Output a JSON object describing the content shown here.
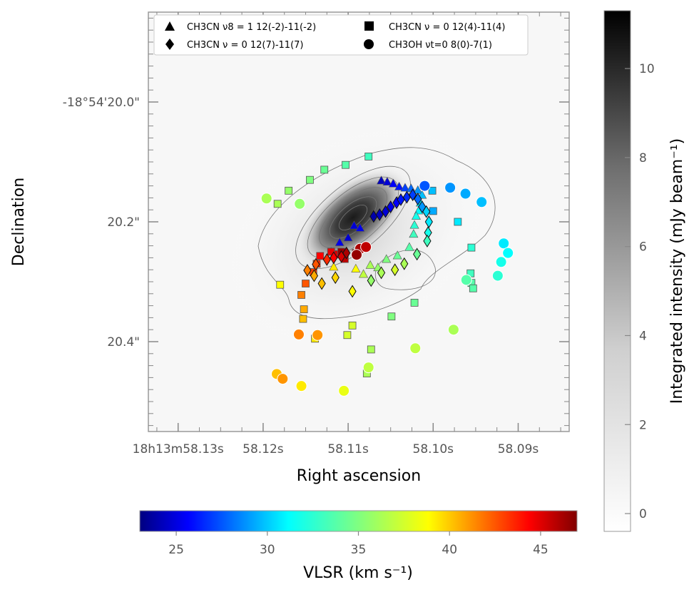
{
  "chart_data": {
    "type": "scatter",
    "subtype": "sky-map with grayscale integrated-intensity image, contours and velocity-coloured markers",
    "xlabel": "Right ascension",
    "ylabel": "Declination",
    "x_ticks": [
      {
        "value": 58.13,
        "label": "18h13m58.13s"
      },
      {
        "value": 58.12,
        "label": "58.12s"
      },
      {
        "value": 58.11,
        "label": "58.11s"
      },
      {
        "value": 58.1,
        "label": "58.10s"
      },
      {
        "value": 58.09,
        "label": "58.09s"
      }
    ],
    "y_ticks": [
      {
        "value": 20.0,
        "label": "-18°54'20.0\""
      },
      {
        "value": 20.2,
        "label": "20.2\""
      },
      {
        "value": 20.4,
        "label": "20.4\""
      }
    ],
    "x_range_sec": [
      58.1335,
      58.084
    ],
    "y_range_arcsec": [
      19.85,
      20.55
    ],
    "image": {
      "peak": {
        "ra": 58.1095,
        "dec": 20.19
      },
      "max_intensity": 11.3
    },
    "contours_note": "thin gray contours of the integrated intensity",
    "colorbar_intensity": {
      "label": "Integrated intensity (mJy beam⁻¹)",
      "ticks": [
        0,
        2,
        4,
        6,
        8,
        10
      ],
      "range": [
        -0.4,
        11.3
      ]
    },
    "colorbar_velocity": {
      "label": "VLSR (km s⁻¹)",
      "ticks": [
        25,
        30,
        35,
        40,
        45
      ],
      "range": [
        23,
        47
      ]
    },
    "legend": [
      {
        "marker": "triangle",
        "label": "CH3CN ν8 = 1 12(-2)-11(-2)"
      },
      {
        "marker": "square",
        "label": "CH3CN ν = 0 12(4)-11(4)"
      },
      {
        "marker": "diamond",
        "label": "CH3CN ν = 0 12(7)-11(7)"
      },
      {
        "marker": "circle",
        "label": "CH3OH νt=0 8(0)-7(1)"
      }
    ],
    "series": [
      {
        "name": "CH3CN v8=1 12(-2)-11(-2)",
        "marker": "triangle",
        "points": [
          {
            "ra": 58.1061,
            "dec": 20.131,
            "v": 24.5
          },
          {
            "ra": 58.1054,
            "dec": 20.133,
            "v": 25.0
          },
          {
            "ra": 58.1047,
            "dec": 20.136,
            "v": 25.8
          },
          {
            "ra": 58.104,
            "dec": 20.141,
            "v": 26.5
          },
          {
            "ra": 58.1033,
            "dec": 20.143,
            "v": 27.5
          },
          {
            "ra": 58.1026,
            "dec": 20.144,
            "v": 28.5
          },
          {
            "ra": 58.1018,
            "dec": 20.147,
            "v": 29.5
          },
          {
            "ra": 58.1013,
            "dec": 20.155,
            "v": 30.5
          },
          {
            "ra": 58.1015,
            "dec": 20.168,
            "v": 31.5
          },
          {
            "ra": 58.1017,
            "dec": 20.181,
            "v": 32.0
          },
          {
            "ra": 58.102,
            "dec": 20.19,
            "v": 32.5
          },
          {
            "ra": 58.1022,
            "dec": 20.205,
            "v": 33.0
          },
          {
            "ra": 58.1023,
            "dec": 20.22,
            "v": 33.5
          },
          {
            "ra": 58.1028,
            "dec": 20.242,
            "v": 34.0
          },
          {
            "ra": 58.1042,
            "dec": 20.256,
            "v": 34.5
          },
          {
            "ra": 58.1055,
            "dec": 20.262,
            "v": 35.0
          },
          {
            "ra": 58.1065,
            "dec": 20.276,
            "v": 35.5
          },
          {
            "ra": 58.1074,
            "dec": 20.272,
            "v": 36.0
          },
          {
            "ra": 58.1082,
            "dec": 20.287,
            "v": 36.5
          },
          {
            "ra": 58.1091,
            "dec": 20.278,
            "v": 38.0
          },
          {
            "ra": 58.1117,
            "dec": 20.275,
            "v": 38.5
          },
          {
            "ra": 58.1093,
            "dec": 20.206,
            "v": 25.0
          },
          {
            "ra": 58.1086,
            "dec": 20.21,
            "v": 25.5
          },
          {
            "ra": 58.11,
            "dec": 20.226,
            "v": 25.0
          },
          {
            "ra": 58.111,
            "dec": 20.234,
            "v": 25.5
          },
          {
            "ra": 58.112,
            "dec": 20.25,
            "v": 45.0
          }
        ]
      },
      {
        "name": "CH3CN v=0 12(4)-11(4)",
        "marker": "square",
        "points": [
          {
            "ra": 58.1076,
            "dec": 20.091,
            "v": 33.5
          },
          {
            "ra": 58.1103,
            "dec": 20.105,
            "v": 34.0
          },
          {
            "ra": 58.1128,
            "dec": 20.113,
            "v": 34.5
          },
          {
            "ra": 58.1145,
            "dec": 20.13,
            "v": 35.0
          },
          {
            "ra": 58.117,
            "dec": 20.148,
            "v": 35.5
          },
          {
            "ra": 58.1183,
            "dec": 20.17,
            "v": 36.0
          },
          {
            "ra": 58.1001,
            "dec": 20.148,
            "v": 30.5
          },
          {
            "ra": 58.1,
            "dec": 20.182,
            "v": 30.0
          },
          {
            "ra": 58.0971,
            "dec": 20.2,
            "v": 31.5
          },
          {
            "ra": 58.0955,
            "dec": 20.243,
            "v": 33.0
          },
          {
            "ra": 58.0956,
            "dec": 20.286,
            "v": 33.5
          },
          {
            "ra": 58.0955,
            "dec": 20.302,
            "v": 34.0
          },
          {
            "ra": 58.0953,
            "dec": 20.311,
            "v": 34.0
          },
          {
            "ra": 58.1022,
            "dec": 20.335,
            "v": 34.5
          },
          {
            "ra": 58.1049,
            "dec": 20.358,
            "v": 35.0
          },
          {
            "ra": 58.1073,
            "dec": 20.413,
            "v": 36.0
          },
          {
            "ra": 58.1078,
            "dec": 20.453,
            "v": 36.0
          },
          {
            "ra": 58.1101,
            "dec": 20.389,
            "v": 37.0
          },
          {
            "ra": 58.1095,
            "dec": 20.373,
            "v": 37.0
          },
          {
            "ra": 58.118,
            "dec": 20.305,
            "v": 38.0
          },
          {
            "ra": 58.1139,
            "dec": 20.395,
            "v": 38.5
          },
          {
            "ra": 58.1153,
            "dec": 20.362,
            "v": 39.5
          },
          {
            "ra": 58.1152,
            "dec": 20.346,
            "v": 40.0
          },
          {
            "ra": 58.1155,
            "dec": 20.322,
            "v": 41.0
          },
          {
            "ra": 58.115,
            "dec": 20.303,
            "v": 42.0
          },
          {
            "ra": 58.1141,
            "dec": 20.284,
            "v": 42.5
          },
          {
            "ra": 58.1137,
            "dec": 20.27,
            "v": 43.0
          },
          {
            "ra": 58.1133,
            "dec": 20.257,
            "v": 44.0
          },
          {
            "ra": 58.112,
            "dec": 20.25,
            "v": 44.5
          },
          {
            "ra": 58.1112,
            "dec": 20.254,
            "v": 45.0
          },
          {
            "ra": 58.1104,
            "dec": 20.262,
            "v": 45.5
          },
          {
            "ra": 58.1091,
            "dec": 20.252,
            "v": 46.0
          },
          {
            "ra": 58.1108,
            "dec": 20.25,
            "v": 46.5
          }
        ]
      },
      {
        "name": "CH3CN v=0 12(7)-11(7)",
        "marker": "diamond",
        "points": [
          {
            "ra": 58.107,
            "dec": 20.191,
            "v": 24.0
          },
          {
            "ra": 58.1063,
            "dec": 20.188,
            "v": 24.5
          },
          {
            "ra": 58.1056,
            "dec": 20.183,
            "v": 25.0
          },
          {
            "ra": 58.105,
            "dec": 20.175,
            "v": 25.5
          },
          {
            "ra": 58.1043,
            "dec": 20.168,
            "v": 26.0
          },
          {
            "ra": 58.1038,
            "dec": 20.163,
            "v": 26.5
          },
          {
            "ra": 58.1031,
            "dec": 20.159,
            "v": 27.0
          },
          {
            "ra": 58.1024,
            "dec": 20.155,
            "v": 27.5
          },
          {
            "ra": 58.1018,
            "dec": 20.162,
            "v": 28.5
          },
          {
            "ra": 58.1013,
            "dec": 20.175,
            "v": 29.5
          },
          {
            "ra": 58.1008,
            "dec": 20.183,
            "v": 31.0
          },
          {
            "ra": 58.1005,
            "dec": 20.2,
            "v": 31.5
          },
          {
            "ra": 58.1006,
            "dec": 20.218,
            "v": 32.5
          },
          {
            "ra": 58.1007,
            "dec": 20.232,
            "v": 33.5
          },
          {
            "ra": 58.1019,
            "dec": 20.254,
            "v": 34.5
          },
          {
            "ra": 58.1034,
            "dec": 20.27,
            "v": 36.0
          },
          {
            "ra": 58.1045,
            "dec": 20.28,
            "v": 37.0
          },
          {
            "ra": 58.1073,
            "dec": 20.298,
            "v": 35.5
          },
          {
            "ra": 58.1061,
            "dec": 20.285,
            "v": 36.0
          },
          {
            "ra": 58.1095,
            "dec": 20.316,
            "v": 38.0
          },
          {
            "ra": 58.1115,
            "dec": 20.293,
            "v": 39.0
          },
          {
            "ra": 58.1131,
            "dec": 20.303,
            "v": 39.5
          },
          {
            "ra": 58.114,
            "dec": 20.29,
            "v": 40.0
          },
          {
            "ra": 58.1148,
            "dec": 20.281,
            "v": 41.0
          },
          {
            "ra": 58.1138,
            "dec": 20.271,
            "v": 42.0
          },
          {
            "ra": 58.1125,
            "dec": 20.263,
            "v": 43.0
          },
          {
            "ra": 58.1117,
            "dec": 20.26,
            "v": 44.0
          },
          {
            "ra": 58.1108,
            "dec": 20.258,
            "v": 45.0
          },
          {
            "ra": 58.1102,
            "dec": 20.252,
            "v": 46.0
          }
        ]
      },
      {
        "name": "CH3OH vt=0 8(0)-7(1)",
        "marker": "circle",
        "points": [
          {
            "ra": 58.101,
            "dec": 20.14,
            "v": 28.0
          },
          {
            "ra": 58.098,
            "dec": 20.143,
            "v": 29.5
          },
          {
            "ra": 58.0962,
            "dec": 20.153,
            "v": 30.0
          },
          {
            "ra": 58.0943,
            "dec": 20.167,
            "v": 30.5
          },
          {
            "ra": 58.0917,
            "dec": 20.236,
            "v": 31.5
          },
          {
            "ra": 58.0912,
            "dec": 20.252,
            "v": 32.0
          },
          {
            "ra": 58.092,
            "dec": 20.267,
            "v": 32.5
          },
          {
            "ra": 58.0924,
            "dec": 20.29,
            "v": 33.0
          },
          {
            "ra": 58.0961,
            "dec": 20.297,
            "v": 34.0
          },
          {
            "ra": 58.0976,
            "dec": 20.38,
            "v": 36.0
          },
          {
            "ra": 58.1021,
            "dec": 20.411,
            "v": 36.5
          },
          {
            "ra": 58.1076,
            "dec": 20.443,
            "v": 36.5
          },
          {
            "ra": 58.1157,
            "dec": 20.17,
            "v": 35.5
          },
          {
            "ra": 58.1196,
            "dec": 20.161,
            "v": 36.0
          },
          {
            "ra": 58.1155,
            "dec": 20.474,
            "v": 38.5
          },
          {
            "ra": 58.1105,
            "dec": 20.482,
            "v": 37.5
          },
          {
            "ra": 58.1136,
            "dec": 20.389,
            "v": 40.5
          },
          {
            "ra": 58.1158,
            "dec": 20.388,
            "v": 41.0
          },
          {
            "ra": 58.1184,
            "dec": 20.454,
            "v": 39.5
          },
          {
            "ra": 58.1177,
            "dec": 20.462,
            "v": 40.5
          },
          {
            "ra": 58.1086,
            "dec": 20.245,
            "v": 46.0
          },
          {
            "ra": 58.1079,
            "dec": 20.242,
            "v": 45.5
          },
          {
            "ra": 58.109,
            "dec": 20.255,
            "v": 46.5
          }
        ]
      }
    ]
  }
}
